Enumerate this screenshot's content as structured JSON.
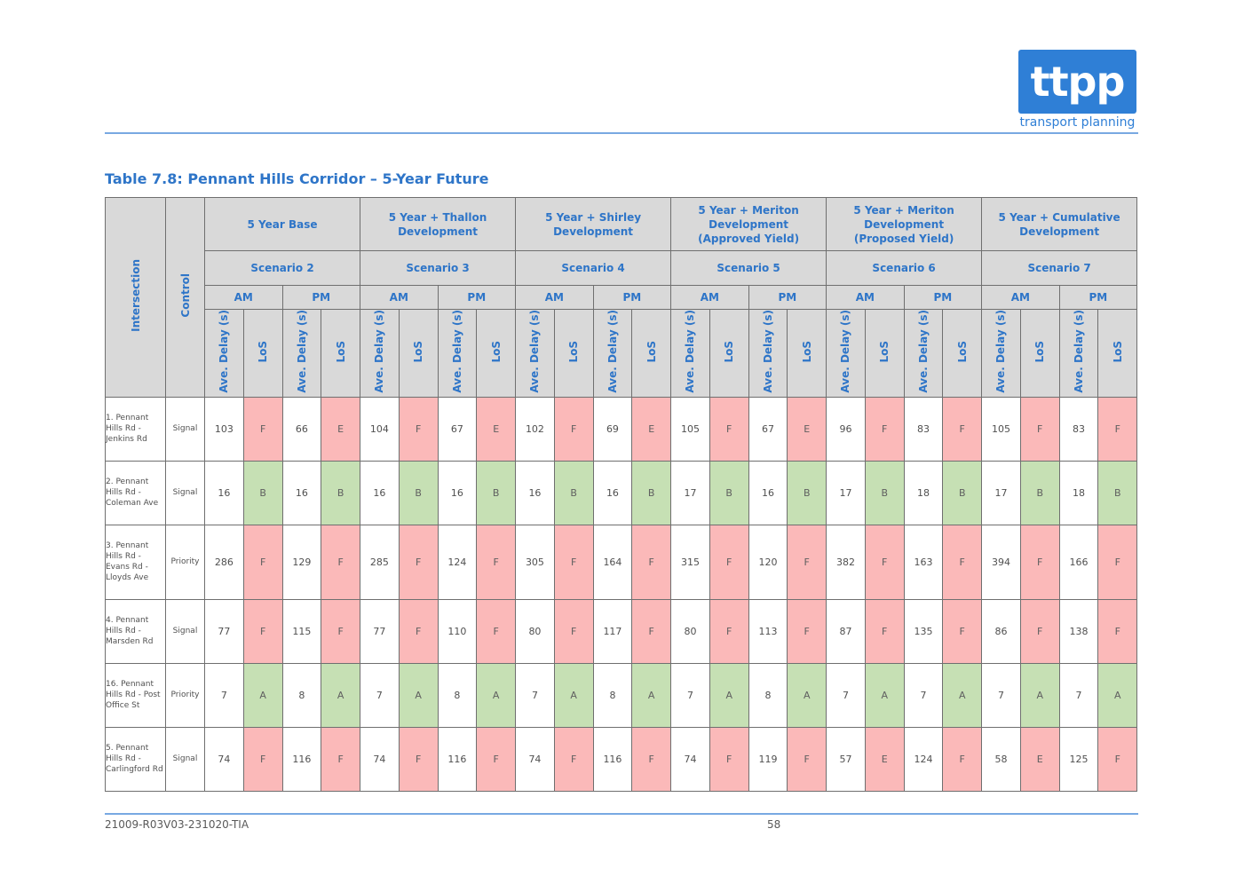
{
  "logo": {
    "text": "ttpp",
    "subtitle": "transport planning",
    "color": "#2f7fd6"
  },
  "title": "Table 7.8: Pennant Hills Corridor – 5-Year Future",
  "headers": {
    "intersection": "Intersection",
    "control": "Control",
    "groups": [
      {
        "label": "5 Year Base",
        "scenario": "Scenario 2"
      },
      {
        "label": "5 Year + Thallon Development",
        "scenario": "Scenario 3"
      },
      {
        "label": "5 Year + Shirley Development",
        "scenario": "Scenario 4"
      },
      {
        "label": "5 Year + Meriton Development (Approved Yield)",
        "scenario": "Scenario 5"
      },
      {
        "label": "5 Year + Meriton Development (Proposed Yield)",
        "scenario": "Scenario 6"
      },
      {
        "label": "5 Year + Cumulative Development",
        "scenario": "Scenario 7"
      }
    ],
    "am": "AM",
    "pm": "PM",
    "delay": "Ave. Delay (s)",
    "los": "LoS"
  },
  "colors": {
    "header_bg": "#d9d9d9",
    "header_text": "#2e75c8",
    "los_bad": "#fbb9b9",
    "los_good": "#c6e0b4"
  },
  "rows": [
    {
      "name": "1. Pennant Hills Rd - Jenkins Rd",
      "control": "Signal",
      "values": [
        [
          "103",
          "F",
          "66",
          "E"
        ],
        [
          "104",
          "F",
          "67",
          "E"
        ],
        [
          "102",
          "F",
          "69",
          "E"
        ],
        [
          "105",
          "F",
          "67",
          "E"
        ],
        [
          "96",
          "F",
          "83",
          "F"
        ],
        [
          "105",
          "F",
          "83",
          "F"
        ]
      ]
    },
    {
      "name": "2. Pennant Hills Rd - Coleman Ave",
      "control": "Signal",
      "values": [
        [
          "16",
          "B",
          "16",
          "B"
        ],
        [
          "16",
          "B",
          "16",
          "B"
        ],
        [
          "16",
          "B",
          "16",
          "B"
        ],
        [
          "17",
          "B",
          "16",
          "B"
        ],
        [
          "17",
          "B",
          "18",
          "B"
        ],
        [
          "17",
          "B",
          "18",
          "B"
        ]
      ]
    },
    {
      "name": "3. Pennant Hills Rd - Evans Rd - Lloyds Ave",
      "control": "Priority",
      "values": [
        [
          "286",
          "F",
          "129",
          "F"
        ],
        [
          "285",
          "F",
          "124",
          "F"
        ],
        [
          "305",
          "F",
          "164",
          "F"
        ],
        [
          "315",
          "F",
          "120",
          "F"
        ],
        [
          "382",
          "F",
          "163",
          "F"
        ],
        [
          "394",
          "F",
          "166",
          "F"
        ]
      ]
    },
    {
      "name": "4. Pennant Hills Rd - Marsden Rd",
      "control": "Signal",
      "values": [
        [
          "77",
          "F",
          "115",
          "F"
        ],
        [
          "77",
          "F",
          "110",
          "F"
        ],
        [
          "80",
          "F",
          "117",
          "F"
        ],
        [
          "80",
          "F",
          "113",
          "F"
        ],
        [
          "87",
          "F",
          "135",
          "F"
        ],
        [
          "86",
          "F",
          "138",
          "F"
        ]
      ]
    },
    {
      "name": "16. Pennant Hills Rd - Post Office St",
      "control": "Priority",
      "values": [
        [
          "7",
          "A",
          "8",
          "A"
        ],
        [
          "7",
          "A",
          "8",
          "A"
        ],
        [
          "7",
          "A",
          "8",
          "A"
        ],
        [
          "7",
          "A",
          "8",
          "A"
        ],
        [
          "7",
          "A",
          "7",
          "A"
        ],
        [
          "7",
          "A",
          "7",
          "A"
        ]
      ]
    },
    {
      "name": "5. Pennant Hills Rd - Carlingford Rd",
      "control": "Signal",
      "values": [
        [
          "74",
          "F",
          "116",
          "F"
        ],
        [
          "74",
          "F",
          "116",
          "F"
        ],
        [
          "74",
          "F",
          "116",
          "F"
        ],
        [
          "74",
          "F",
          "119",
          "F"
        ],
        [
          "57",
          "E",
          "124",
          "F"
        ],
        [
          "58",
          "E",
          "125",
          "F"
        ]
      ]
    }
  ],
  "footer": {
    "ref": "21009-R03V03-231020-TIA",
    "page": "58"
  }
}
